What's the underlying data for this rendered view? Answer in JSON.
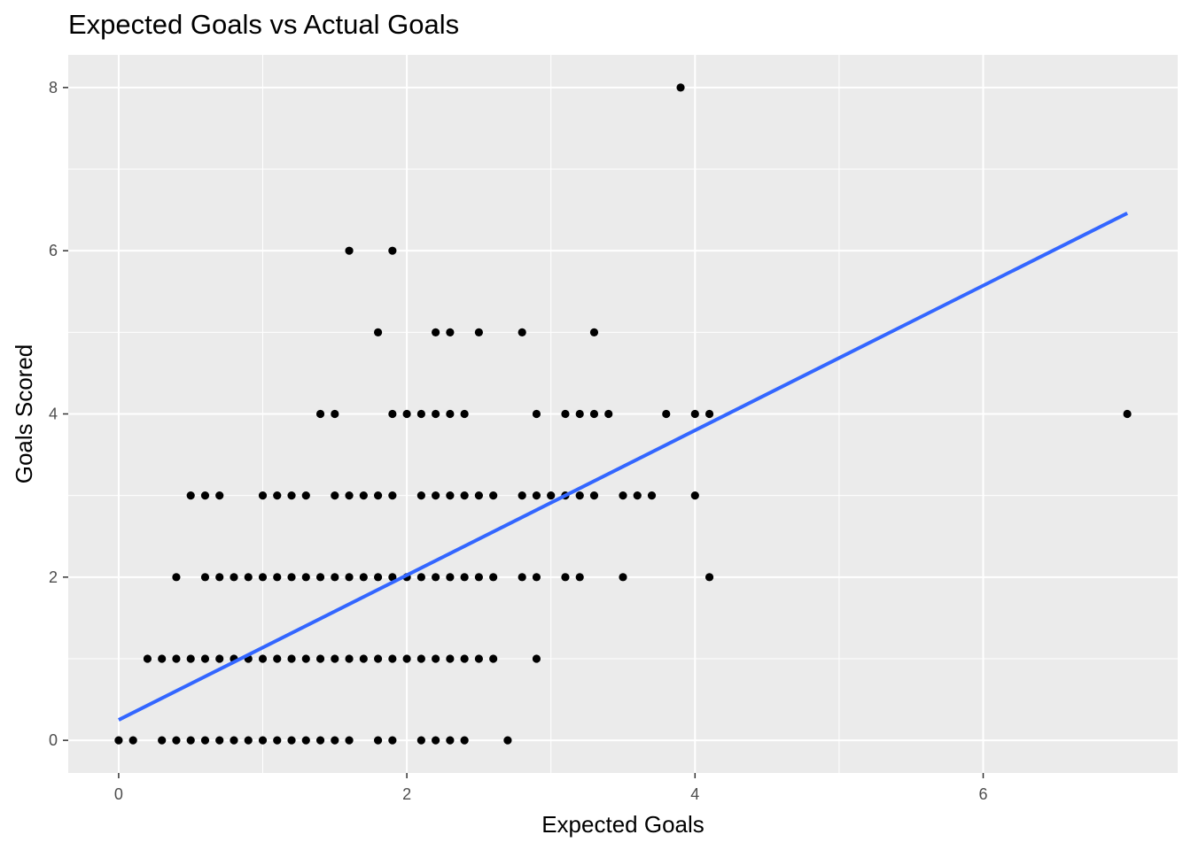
{
  "chart_data": {
    "type": "scatter",
    "title": "Expected Goals vs Actual Goals",
    "xlabel": "Expected Goals",
    "ylabel": "Goals Scored",
    "xlim": [
      -0.35,
      7.35
    ],
    "ylim": [
      -0.4,
      8.4
    ],
    "x_ticks": [
      0,
      2,
      4,
      6
    ],
    "y_ticks": [
      0,
      2,
      4,
      6,
      8
    ],
    "grid": true,
    "legend": "none",
    "colors": {
      "panel_bg": "#EBEBEB",
      "grid": "#FFFFFF",
      "points": "#000000",
      "trend_line": "#3366FF",
      "tick_text": "#4D4D4D"
    },
    "trend_line": {
      "type": "linear",
      "x": [
        0,
        7
      ],
      "y": [
        0.25,
        6.46
      ]
    },
    "points": [
      [
        0,
        0
      ],
      [
        0.1,
        0
      ],
      [
        0.3,
        0
      ],
      [
        0.4,
        0
      ],
      [
        0.5,
        0
      ],
      [
        0.6,
        0
      ],
      [
        0.7,
        0
      ],
      [
        0.8,
        0
      ],
      [
        0.9,
        0
      ],
      [
        1.0,
        0
      ],
      [
        1.1,
        0
      ],
      [
        1.2,
        0
      ],
      [
        1.3,
        0
      ],
      [
        1.4,
        0
      ],
      [
        1.5,
        0
      ],
      [
        1.6,
        0
      ],
      [
        1.8,
        0
      ],
      [
        1.9,
        0
      ],
      [
        2.1,
        0
      ],
      [
        2.2,
        0
      ],
      [
        2.3,
        0
      ],
      [
        2.4,
        0
      ],
      [
        2.7,
        0
      ],
      [
        0.2,
        1
      ],
      [
        0.3,
        1
      ],
      [
        0.4,
        1
      ],
      [
        0.5,
        1
      ],
      [
        0.6,
        1
      ],
      [
        0.7,
        1
      ],
      [
        0.8,
        1
      ],
      [
        0.9,
        1
      ],
      [
        1.0,
        1
      ],
      [
        1.1,
        1
      ],
      [
        1.2,
        1
      ],
      [
        1.3,
        1
      ],
      [
        1.4,
        1
      ],
      [
        1.5,
        1
      ],
      [
        1.6,
        1
      ],
      [
        1.7,
        1
      ],
      [
        1.8,
        1
      ],
      [
        1.9,
        1
      ],
      [
        2.0,
        1
      ],
      [
        2.1,
        1
      ],
      [
        2.2,
        1
      ],
      [
        2.3,
        1
      ],
      [
        2.4,
        1
      ],
      [
        2.5,
        1
      ],
      [
        2.6,
        1
      ],
      [
        2.9,
        1
      ],
      [
        0.4,
        2
      ],
      [
        0.6,
        2
      ],
      [
        0.7,
        2
      ],
      [
        0.8,
        2
      ],
      [
        0.9,
        2
      ],
      [
        1.0,
        2
      ],
      [
        1.1,
        2
      ],
      [
        1.2,
        2
      ],
      [
        1.3,
        2
      ],
      [
        1.4,
        2
      ],
      [
        1.5,
        2
      ],
      [
        1.6,
        2
      ],
      [
        1.7,
        2
      ],
      [
        1.8,
        2
      ],
      [
        1.9,
        2
      ],
      [
        2.0,
        2
      ],
      [
        2.1,
        2
      ],
      [
        2.2,
        2
      ],
      [
        2.3,
        2
      ],
      [
        2.4,
        2
      ],
      [
        2.5,
        2
      ],
      [
        2.6,
        2
      ],
      [
        2.8,
        2
      ],
      [
        2.9,
        2
      ],
      [
        3.1,
        2
      ],
      [
        3.2,
        2
      ],
      [
        3.5,
        2
      ],
      [
        4.1,
        2
      ],
      [
        0.5,
        3
      ],
      [
        0.6,
        3
      ],
      [
        0.7,
        3
      ],
      [
        1.0,
        3
      ],
      [
        1.1,
        3
      ],
      [
        1.2,
        3
      ],
      [
        1.3,
        3
      ],
      [
        1.5,
        3
      ],
      [
        1.6,
        3
      ],
      [
        1.7,
        3
      ],
      [
        1.8,
        3
      ],
      [
        1.9,
        3
      ],
      [
        2.1,
        3
      ],
      [
        2.2,
        3
      ],
      [
        2.3,
        3
      ],
      [
        2.4,
        3
      ],
      [
        2.5,
        3
      ],
      [
        2.6,
        3
      ],
      [
        2.8,
        3
      ],
      [
        2.9,
        3
      ],
      [
        3.0,
        3
      ],
      [
        3.1,
        3
      ],
      [
        3.2,
        3
      ],
      [
        3.3,
        3
      ],
      [
        3.5,
        3
      ],
      [
        3.6,
        3
      ],
      [
        3.7,
        3
      ],
      [
        4.0,
        3
      ],
      [
        1.4,
        4
      ],
      [
        1.5,
        4
      ],
      [
        1.9,
        4
      ],
      [
        2.0,
        4
      ],
      [
        2.1,
        4
      ],
      [
        2.2,
        4
      ],
      [
        2.3,
        4
      ],
      [
        2.4,
        4
      ],
      [
        2.9,
        4
      ],
      [
        3.1,
        4
      ],
      [
        3.2,
        4
      ],
      [
        3.3,
        4
      ],
      [
        3.4,
        4
      ],
      [
        3.8,
        4
      ],
      [
        4.0,
        4
      ],
      [
        4.1,
        4
      ],
      [
        7.0,
        4
      ],
      [
        1.8,
        5
      ],
      [
        2.2,
        5
      ],
      [
        2.3,
        5
      ],
      [
        2.5,
        5
      ],
      [
        2.8,
        5
      ],
      [
        3.3,
        5
      ],
      [
        1.6,
        6
      ],
      [
        1.9,
        6
      ],
      [
        3.9,
        8
      ]
    ]
  }
}
